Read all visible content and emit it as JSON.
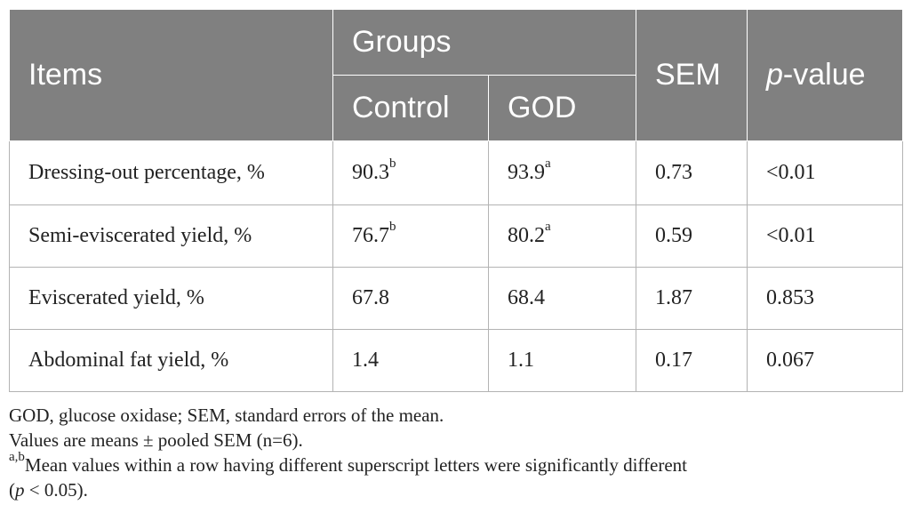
{
  "table": {
    "header": {
      "items": "Items",
      "groups": "Groups",
      "control": "Control",
      "god": "GOD",
      "sem": "SEM",
      "p_italic": "p",
      "p_suffix": "-value"
    },
    "rows": [
      {
        "item": "Dressing-out percentage, %",
        "control": "90.3",
        "control_sup": "b",
        "god": "93.9",
        "god_sup": "a",
        "sem": "0.73",
        "p": "<0.01"
      },
      {
        "item": "Semi-eviscerated yield, %",
        "control": "76.7",
        "control_sup": "b",
        "god": "80.2",
        "god_sup": "a",
        "sem": "0.59",
        "p": "<0.01"
      },
      {
        "item": "Eviscerated yield, %",
        "control": "67.8",
        "control_sup": "",
        "god": "68.4",
        "god_sup": "",
        "sem": "1.87",
        "p": "0.853"
      },
      {
        "item": "Abdominal fat yield, %",
        "control": "1.4",
        "control_sup": "",
        "god": "1.1",
        "god_sup": "",
        "sem": "0.17",
        "p": "0.067"
      }
    ]
  },
  "footnotes": {
    "line1": "GOD, glucose oxidase; SEM, standard errors of the mean.",
    "line2": "Values are means ± pooled SEM (n=6).",
    "line3_sup": "a,b",
    "line3_text": "Mean values within a row having different superscript letters were significantly different",
    "line4_open": "(",
    "line4_p": "p",
    "line4_rest": " < 0.05)."
  }
}
